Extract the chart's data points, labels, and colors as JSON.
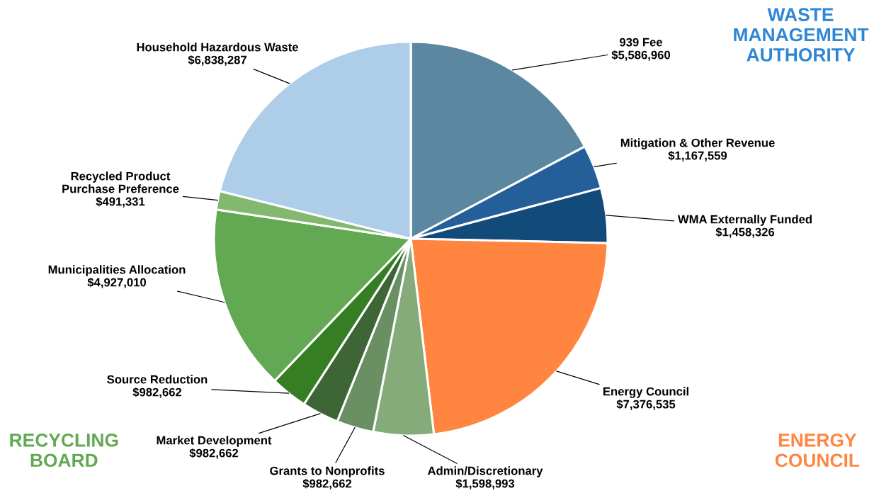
{
  "chart_data": {
    "type": "pie",
    "categories": [
      "939 Fee",
      "Mitigation & Other Revenue",
      "WMA Externally Funded",
      "Energy Council",
      "Admin/Discretionary",
      "Grants to Nonprofits",
      "Market Development",
      "Source Reduction",
      "Municipalities Allocation",
      "Recycled Product\nPurchase Preference",
      "Household Hazardous Waste"
    ],
    "values": [
      5586960,
      1167559,
      1458326,
      7376535,
      1598993,
      982662,
      982662,
      982662,
      4927010,
      491331,
      6838287
    ],
    "value_labels": [
      "$5,586,960",
      "$1,167,559",
      "$1,458,326",
      "$7,376,535",
      "$1,598,993",
      "$982,662",
      "$982,662",
      "$982,662",
      "$4,927,010",
      "$491,331",
      "$6,838,287"
    ],
    "colors": [
      "#5b88a0",
      "#245f99",
      "#124a7a",
      "#ff8540",
      "#85ab7a",
      "#6a8f63",
      "#3d6536",
      "#357e24",
      "#63a852",
      "#82b870",
      "#aecde8"
    ],
    "annotations": [
      "WASTE\nMANAGEMENT\nAUTHORITY",
      "RECYCLING\nBOARD",
      "ENERGY\nCOUNCIL"
    ],
    "legend": false
  }
}
